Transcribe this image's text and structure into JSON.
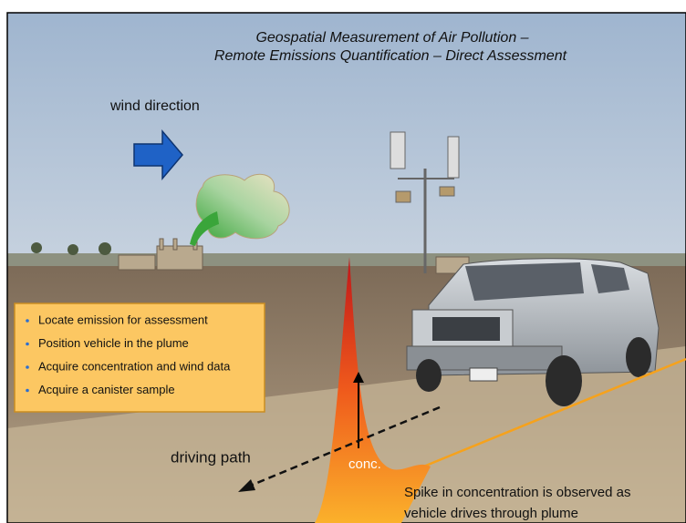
{
  "slide": {
    "title_lines": [
      "Geospatial Measurement of Air Pollution –",
      "Remote Emissions Quantification – Direct Assessment"
    ],
    "wind_label": "wind direction",
    "steps": [
      "Locate emission for assessment",
      "Position vehicle in the plume",
      "Acquire concentration and wind data",
      "Acquire a canister sample"
    ],
    "path_label": "driving path",
    "spike_label": "conc.",
    "caption_lines": [
      "Spike in concentration is observed as",
      "vehicle drives through plume"
    ]
  }
}
